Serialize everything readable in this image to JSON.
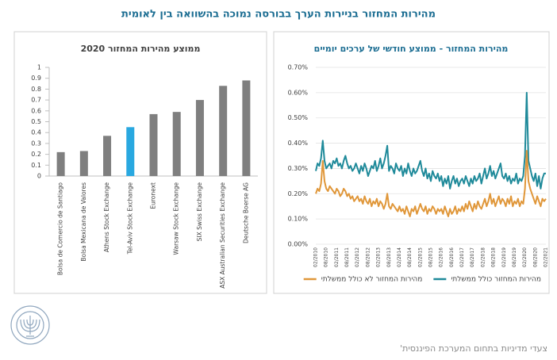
{
  "title": "מהירות המחזור בניירות הערך בבורסה נמוכה בהשוואה בין לאומית",
  "footer": "צעדי מדיניות בתחום המערכת הפיננסית'",
  "chart_data": [
    {
      "type": "bar",
      "title": "ממוצע מהירות המחזור 2020",
      "categories": [
        "Bolsa de Comercio de Santiago",
        "Bolsa Mexicana de Valores",
        "Athens Stock Exchange",
        "Tel-Aviv Stock Exchange",
        "Euronext",
        "Warsaw Stock Exchange",
        "SIX Swiss Exchange",
        "ASX Australian Securities Exchange",
        "Deutsche Boerse AG"
      ],
      "values": [
        0.22,
        0.23,
        0.37,
        0.45,
        0.57,
        0.59,
        0.7,
        0.83,
        0.88
      ],
      "colors": [
        "#7f7f7f",
        "#7f7f7f",
        "#7f7f7f",
        "#29a8e0",
        "#7f7f7f",
        "#7f7f7f",
        "#7f7f7f",
        "#7f7f7f",
        "#7f7f7f"
      ],
      "ylim": [
        0,
        1
      ],
      "yticks": [
        0,
        0.1,
        0.2,
        0.3,
        0.4,
        0.5,
        0.6,
        0.7,
        0.8,
        0.9,
        1
      ],
      "grid": false
    },
    {
      "type": "line",
      "title": "מהירות המחזור - ממוצע חודשי של ערכים יומיים",
      "categories": [
        "02/2010",
        null,
        null,
        null,
        null,
        null,
        "08/2010",
        null,
        null,
        null,
        null,
        null,
        "02/2011",
        null,
        null,
        null,
        null,
        null,
        "08/2011",
        null,
        null,
        null,
        null,
        null,
        "02/2012",
        null,
        null,
        null,
        null,
        null,
        "08/2012",
        null,
        null,
        null,
        null,
        null,
        "02/2013",
        null,
        null,
        null,
        null,
        null,
        "08/2013",
        null,
        null,
        null,
        null,
        null,
        "02/2014",
        null,
        null,
        null,
        null,
        null,
        "08/2014",
        null,
        null,
        null,
        null,
        null,
        "02/2015",
        null,
        null,
        null,
        null,
        null,
        "08/2015",
        null,
        null,
        null,
        null,
        null,
        "02/2016",
        null,
        null,
        null,
        null,
        null,
        "08/2016",
        null,
        null,
        null,
        null,
        null,
        "02/2017",
        null,
        null,
        null,
        null,
        null,
        "08/2017",
        null,
        null,
        null,
        null,
        null,
        "02/2018",
        null,
        null,
        null,
        null,
        null,
        "08/2018",
        null,
        null,
        null,
        null,
        null,
        "02/2019",
        null,
        null,
        null,
        null,
        null,
        "08/2019",
        null,
        null,
        null,
        null,
        null,
        "02/2020",
        null,
        null,
        null,
        null,
        null,
        "08/2020",
        null,
        null,
        null,
        null,
        null,
        "02/2021"
      ],
      "series": [
        {
          "name": "מהירות המחזור כולל ממשלתי",
          "color": "#1f8a9a",
          "values": [
            0.29,
            0.32,
            0.31,
            0.34,
            0.41,
            0.33,
            0.3,
            0.31,
            0.32,
            0.3,
            0.33,
            0.32,
            0.34,
            0.31,
            0.32,
            0.3,
            0.33,
            0.35,
            0.32,
            0.3,
            0.31,
            0.29,
            0.3,
            0.32,
            0.3,
            0.28,
            0.31,
            0.29,
            0.32,
            0.3,
            0.27,
            0.29,
            0.31,
            0.3,
            0.33,
            0.29,
            0.31,
            0.34,
            0.3,
            0.32,
            0.35,
            0.39,
            0.29,
            0.31,
            0.3,
            0.28,
            0.32,
            0.3,
            0.29,
            0.31,
            0.27,
            0.3,
            0.28,
            0.32,
            0.29,
            0.27,
            0.3,
            0.28,
            0.29,
            0.31,
            0.33,
            0.29,
            0.27,
            0.3,
            0.26,
            0.28,
            0.25,
            0.29,
            0.27,
            0.26,
            0.28,
            0.25,
            0.27,
            0.23,
            0.26,
            0.24,
            0.27,
            0.22,
            0.25,
            0.27,
            0.24,
            0.26,
            0.23,
            0.25,
            0.26,
            0.24,
            0.27,
            0.25,
            0.23,
            0.26,
            0.24,
            0.27,
            0.25,
            0.26,
            0.28,
            0.24,
            0.27,
            0.3,
            0.26,
            0.28,
            0.31,
            0.27,
            0.29,
            0.26,
            0.28,
            0.3,
            0.32,
            0.27,
            0.26,
            0.28,
            0.25,
            0.27,
            0.24,
            0.26,
            0.25,
            0.28,
            0.24,
            0.26,
            0.25,
            0.27,
            0.35,
            0.6,
            0.33,
            0.3,
            0.27,
            0.25,
            0.28,
            0.23,
            0.27,
            0.22,
            0.26,
            0.28,
            0.28
          ]
        },
        {
          "name": "מהירות המחזור לא כולל ממשלתי",
          "color": "#e0973a",
          "values": [
            0.2,
            0.22,
            0.21,
            0.24,
            0.33,
            0.25,
            0.22,
            0.21,
            0.23,
            0.22,
            0.21,
            0.2,
            0.22,
            0.21,
            0.19,
            0.2,
            0.22,
            0.21,
            0.19,
            0.2,
            0.18,
            0.19,
            0.17,
            0.18,
            0.19,
            0.17,
            0.18,
            0.16,
            0.19,
            0.17,
            0.16,
            0.18,
            0.15,
            0.17,
            0.16,
            0.18,
            0.15,
            0.17,
            0.16,
            0.14,
            0.16,
            0.2,
            0.15,
            0.14,
            0.16,
            0.15,
            0.14,
            0.13,
            0.15,
            0.13,
            0.14,
            0.12,
            0.15,
            0.13,
            0.11,
            0.14,
            0.13,
            0.15,
            0.12,
            0.14,
            0.16,
            0.14,
            0.13,
            0.15,
            0.12,
            0.14,
            0.13,
            0.15,
            0.14,
            0.12,
            0.14,
            0.13,
            0.14,
            0.12,
            0.15,
            0.13,
            0.11,
            0.14,
            0.12,
            0.13,
            0.15,
            0.12,
            0.14,
            0.13,
            0.15,
            0.13,
            0.16,
            0.14,
            0.17,
            0.15,
            0.13,
            0.16,
            0.14,
            0.17,
            0.15,
            0.14,
            0.16,
            0.18,
            0.15,
            0.17,
            0.2,
            0.16,
            0.18,
            0.15,
            0.17,
            0.19,
            0.16,
            0.18,
            0.17,
            0.15,
            0.18,
            0.16,
            0.19,
            0.15,
            0.17,
            0.16,
            0.18,
            0.15,
            0.17,
            0.16,
            0.22,
            0.37,
            0.25,
            0.22,
            0.2,
            0.18,
            0.16,
            0.19,
            0.17,
            0.15,
            0.18,
            0.17,
            0.18
          ]
        }
      ],
      "ylim": [
        0,
        0.7
      ],
      "yticks": [
        {
          "value": 0,
          "label": "0.00%"
        },
        {
          "value": 0.1,
          "label": "0.10%"
        },
        {
          "value": 0.2,
          "label": "0.20%"
        },
        {
          "value": 0.3,
          "label": "0.30%"
        },
        {
          "value": 0.4,
          "label": "0.40%"
        },
        {
          "value": 0.5,
          "label": "0.50%"
        },
        {
          "value": 0.6,
          "label": "0.60%"
        },
        {
          "value": 0.7,
          "label": "0.70%"
        }
      ],
      "grid": true,
      "legend": "bottom"
    }
  ]
}
